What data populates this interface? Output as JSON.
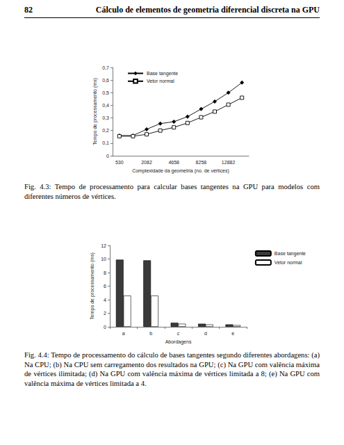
{
  "header": {
    "page_number": "82",
    "title": "Cálculo de elementos de geometria diferencial discreta na GPU"
  },
  "chart_data": [
    {
      "type": "line",
      "x_label": "Complexidade da geometria (no. de vértices)",
      "y_label": "Tempo de processamento (ms)",
      "categories": [
        "530",
        null,
        "2082",
        null,
        "4658",
        null,
        "8258",
        null,
        "12882",
        null
      ],
      "series": [
        {
          "name": "Base tangente",
          "color": "#000000",
          "marker": "diamond",
          "values": [
            0.16,
            0.16,
            0.21,
            0.255,
            0.27,
            0.31,
            0.37,
            0.43,
            0.5,
            0.58
          ]
        },
        {
          "name": "Vetor normal",
          "color": "#000000",
          "marker": "open_square",
          "values": [
            0.155,
            0.155,
            0.17,
            0.2,
            0.225,
            0.26,
            0.305,
            0.35,
            0.405,
            0.46
          ]
        }
      ],
      "ylim": [
        0,
        0.7
      ],
      "yticks": [
        0,
        {
          "value": 0.1,
          "label": "0,1"
        },
        {
          "value": 0.2,
          "label": "0,2"
        },
        {
          "value": 0.3,
          "label": "0,3"
        },
        {
          "value": 0.4,
          "label": "0,4"
        },
        {
          "value": 0.5,
          "label": "0,5"
        },
        {
          "value": 0.6,
          "label": "0,6"
        },
        {
          "value": 0.7,
          "label": "0,7"
        }
      ],
      "grid": false,
      "legend": "upper left"
    },
    {
      "type": "bar",
      "x_label": "Abordagens",
      "y_label": "Tempo de processamento (ms)",
      "categories": [
        "a",
        "b",
        "c",
        "d",
        "e"
      ],
      "series": [
        {
          "name": "Base tangente",
          "color": "#3a3a3a",
          "values": [
            9.9,
            9.8,
            0.6,
            0.45,
            0.35
          ]
        },
        {
          "name": "Vetor normal",
          "color": "#ffffff",
          "values": [
            4.6,
            4.6,
            0.45,
            0.35,
            0.25
          ]
        }
      ],
      "ylim": [
        0,
        12
      ],
      "yticks": [
        0,
        2,
        4,
        6,
        8,
        10,
        12
      ],
      "grid": false,
      "legend": "upper right"
    }
  ],
  "captions": [
    "Fig. 4.3: Tempo de processamento para calcular bases tangentes na GPU para modelos com diferentes números de vértices.",
    "Fig. 4.4: Tempo de processamento do cálculo de bases tangentes segundo diferentes abordagens: (a) Na CPU; (b) Na CPU sem carregamento dos resultados na GPU; (c) Na GPU com valência máxima de vértices ilimitada; (d) Na GPU com valência máxima de vértices limitada a 8; (e) Na GPU com valência máxima de vértices limitada a 4."
  ]
}
